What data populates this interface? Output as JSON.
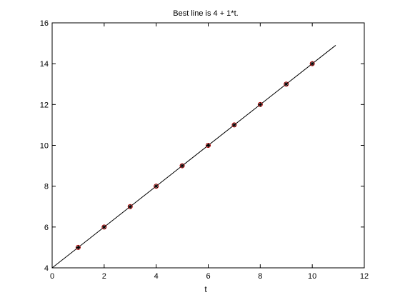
{
  "chart_data": {
    "type": "scatter",
    "title": "Best line is 4 + 1*t.",
    "xlabel": "t",
    "ylabel": "",
    "xlim": [
      0,
      12
    ],
    "ylim": [
      4,
      16
    ],
    "xticks": [
      0,
      2,
      4,
      6,
      8,
      10,
      12
    ],
    "yticks": [
      4,
      6,
      8,
      10,
      12,
      14,
      16
    ],
    "grid": false,
    "series": [
      {
        "kind": "points",
        "marker": "circle-with-star",
        "x": [
          1,
          2,
          3,
          4,
          5,
          6,
          7,
          8,
          9,
          10
        ],
        "y": [
          5,
          6,
          7,
          8,
          9,
          10,
          11,
          12,
          13,
          14
        ]
      },
      {
        "kind": "line",
        "intercept": 4,
        "slope": 1,
        "x_range": [
          0,
          10.9
        ]
      }
    ],
    "colors": {
      "line": "#000000",
      "marker_circle": "#cc0000",
      "marker_star": "#000000"
    }
  }
}
